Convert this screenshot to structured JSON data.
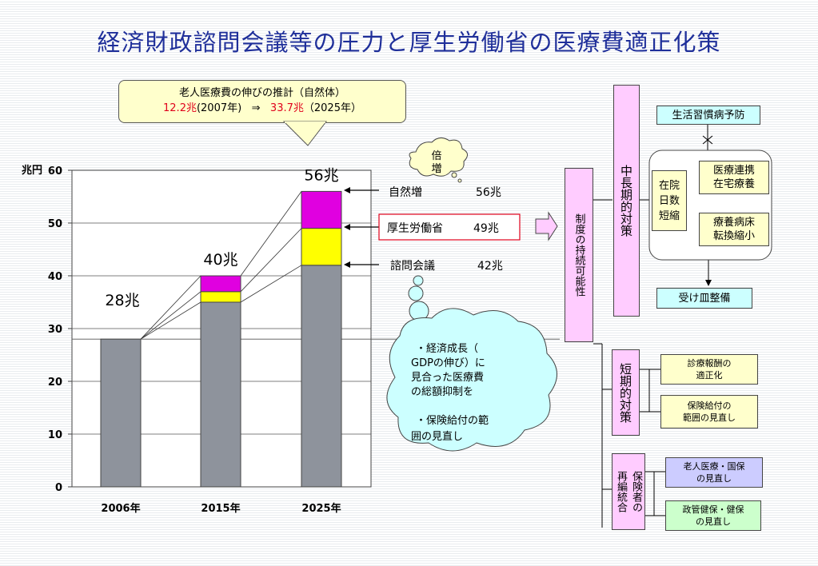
{
  "title": "経済財政諮問会議等の圧力と厚生労働省の医療費適正化策",
  "callout": {
    "line1": "老人医療費の伸びの推計（自然体）",
    "v2007": "12.2兆",
    "y2007": "(2007年)",
    "arrow": "⇒",
    "v2025": "33.7兆",
    "y2025": "（2025年）"
  },
  "cloud_small": "倍増",
  "colors": {
    "gray": "#8e939c",
    "yellow": "#ffff00",
    "magenta": "#e000e0",
    "title": "#1f2f9a",
    "pink": "#ffccff"
  },
  "chart_data": {
    "type": "bar",
    "ylabel": "兆円",
    "ylim": [
      0,
      60
    ],
    "yticks": [
      "0",
      "10",
      "20",
      "30",
      "40",
      "50",
      "60"
    ],
    "categories": [
      "2006年",
      "2015年",
      "2025年"
    ],
    "stacks": [
      {
        "base": 28,
        "yellow": 0,
        "magenta": 0
      },
      {
        "base": 35,
        "yellow": 2,
        "magenta": 3
      },
      {
        "base": 42,
        "yellow": 7,
        "magenta": 7
      }
    ],
    "totals": [
      "28兆",
      "40兆",
      "56兆"
    ],
    "reference_line": 28,
    "annotations": [
      {
        "label": "自然増",
        "value": "56兆"
      },
      {
        "label": "厚生労働省",
        "value": "49兆"
      },
      {
        "label": "諮問会議",
        "value": "42兆"
      }
    ]
  },
  "thought_cloud": {
    "line1": "・経済成長（",
    "line2": "GDPの伸び）に",
    "line3": "見合った医療費",
    "line4": "の総額抑制を",
    "line5": "・保険給付の範",
    "line6": "囲の見直し"
  },
  "sustainability": "制度の持続可能性",
  "mid_long": "中長期的対策",
  "short": "短期的対策",
  "insurer": {
    "col1": "保険者の",
    "col2": "再編統合"
  },
  "right": {
    "lifestyle": "生活習慣病予防",
    "stay": "在院日数短縮",
    "coop1": "医療連携",
    "coop2": "在宅療養",
    "ward1": "療養病床",
    "ward2": "転換縮小",
    "receive": "受け皿整備",
    "fee1": "診療報酬の",
    "fee2": "適正化",
    "benefit1": "保険給付の",
    "benefit2": "範囲の見直し",
    "elder1": "老人医療・国保",
    "elder2": "の見直し",
    "govt1": "政管健保・健保",
    "govt2": "の見直し"
  }
}
